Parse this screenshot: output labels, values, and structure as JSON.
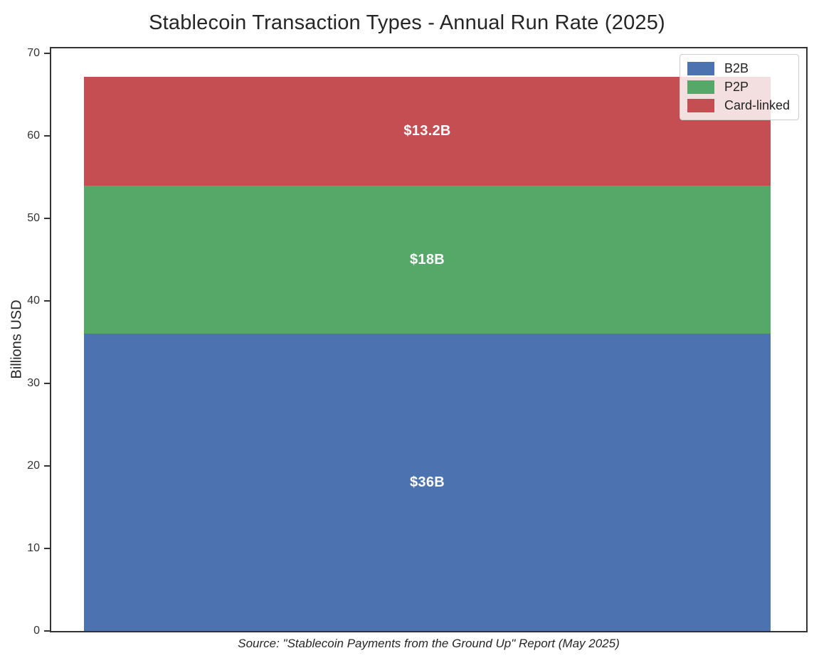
{
  "chart_data": {
    "type": "bar",
    "stacked": true,
    "orientation": "vertical",
    "title": "Stablecoin Transaction Types - Annual Run Rate (2025)",
    "ylabel": "Billions USD",
    "xlabel_caption": "Source: \"Stablecoin Payments from the Ground Up\" Report (May 2025)",
    "categories": [
      ""
    ],
    "series": [
      {
        "name": "B2B",
        "values": [
          36
        ],
        "data_label": "$36B",
        "color": "#4C72B0"
      },
      {
        "name": "P2P",
        "values": [
          18
        ],
        "data_label": "$18B",
        "color": "#55A868"
      },
      {
        "name": "Card-linked",
        "values": [
          13.2
        ],
        "data_label": "$13.2B",
        "color": "#C44E52"
      }
    ],
    "ylim": [
      0,
      70
    ],
    "yticks": [
      0,
      10,
      20,
      30,
      40,
      50,
      60,
      70
    ],
    "grid": false,
    "legend_position": "upper right",
    "bar_label_color": "#FFFFFF"
  },
  "colors": {
    "spine": "#333333",
    "tick_text": "#333333",
    "title_text": "#262626"
  }
}
